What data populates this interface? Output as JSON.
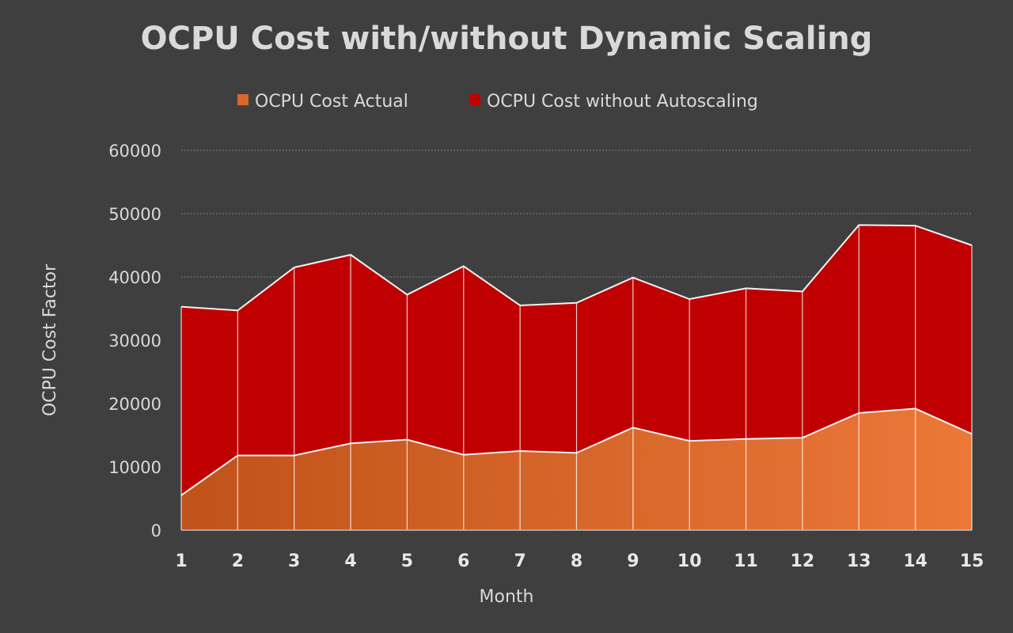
{
  "chart_data": {
    "type": "area",
    "stacked": true,
    "title": "OCPU Cost with/without Dynamic Scaling",
    "xlabel": "Month",
    "ylabel": "OCPU Cost Factor",
    "x": [
      1,
      2,
      3,
      4,
      5,
      6,
      7,
      8,
      9,
      10,
      11,
      12,
      13,
      14,
      15
    ],
    "ylim": [
      0,
      60000
    ],
    "yticks": [
      0,
      10000,
      20000,
      30000,
      40000,
      50000,
      60000
    ],
    "grid": true,
    "legend_position": "top",
    "series": [
      {
        "name": "OCPU Cost Actual",
        "color": "#d9662a",
        "values": [
          5500,
          11800,
          11800,
          13700,
          14300,
          11900,
          12500,
          12200,
          16200,
          14100,
          14400,
          14600,
          18500,
          19200,
          15200
        ]
      },
      {
        "name": "OCPU Cost without Autoscaling",
        "color": "#c00000",
        "values": [
          29800,
          22900,
          29700,
          29800,
          22900,
          29800,
          23000,
          23700,
          23700,
          22400,
          23800,
          23100,
          29700,
          28900,
          29800
        ]
      }
    ]
  },
  "colors": {
    "background": "#3f3f3f",
    "text": "#d9d9d9",
    "gridline": "#7f7f7f",
    "outline": "#f2f2f2"
  }
}
